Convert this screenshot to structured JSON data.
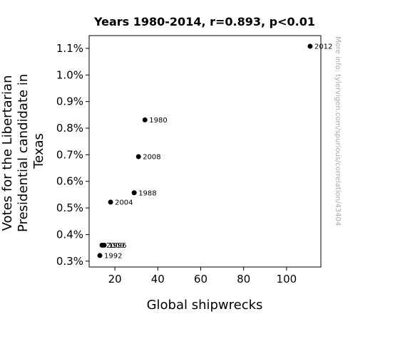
{
  "chart_data": {
    "type": "scatter",
    "title": "Years 1980-2014, r=0.893, p<0.01",
    "xlabel": "Global shipwrecks",
    "ylabel_lines": [
      "Votes for the Libertarian",
      "Presidential candidate in",
      "Texas"
    ],
    "watermark": "More info: tylervigen.com/spurious/correlation/43404",
    "xlim": [
      8,
      116
    ],
    "ylim": [
      0.00278,
      0.01148
    ],
    "x_ticks": [
      20,
      40,
      60,
      80,
      100
    ],
    "x_tick_labels": [
      "20",
      "40",
      "60",
      "80",
      "100"
    ],
    "y_ticks": [
      0.003,
      0.004,
      0.005,
      0.006,
      0.007,
      0.008,
      0.009,
      0.01,
      0.011
    ],
    "y_tick_labels": [
      "0.3%",
      "0.4%",
      "0.5%",
      "0.6%",
      "0.7%",
      "0.8%",
      "0.9%",
      "1.0%",
      "1.1%"
    ],
    "grid": false,
    "point_color": "#000000",
    "points": [
      {
        "label": "1980",
        "x": 34,
        "y": 0.00831
      },
      {
        "label": "1988",
        "x": 29,
        "y": 0.00557
      },
      {
        "label": "1992",
        "x": 13,
        "y": 0.00321
      },
      {
        "label": "2000",
        "x": 14,
        "y": 0.0036
      },
      {
        "label": "1996",
        "x": 15,
        "y": 0.0036
      },
      {
        "label": "2004",
        "x": 18,
        "y": 0.00522
      },
      {
        "label": "2008",
        "x": 31,
        "y": 0.00693
      },
      {
        "label": "2012",
        "x": 111,
        "y": 0.01108
      }
    ]
  }
}
